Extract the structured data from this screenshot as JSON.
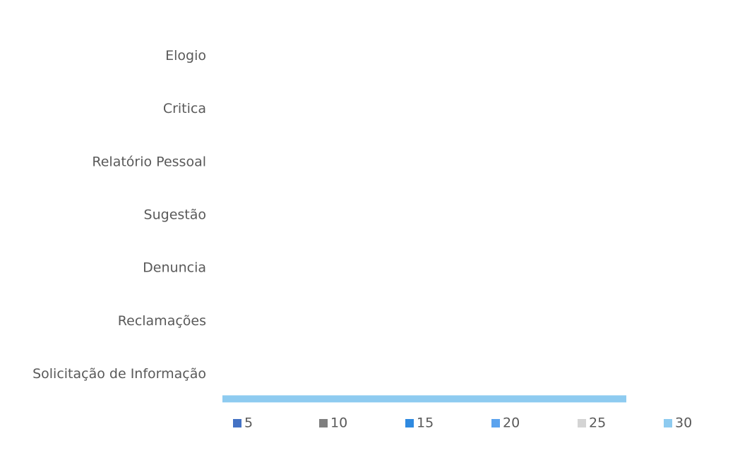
{
  "chart_data": {
    "type": "hbar",
    "categories": [
      "Elogio",
      "Critica",
      "Relatório Pessoal",
      "Sugestão",
      "Denuncia",
      "Reclamações",
      "Solicitação de Informação"
    ],
    "series": [
      {
        "name": "5",
        "color": "#4472c4",
        "values": [
          null,
          null,
          null,
          null,
          null,
          null,
          null
        ]
      },
      {
        "name": "10",
        "color": "#7f7f7f",
        "values": [
          null,
          null,
          null,
          null,
          null,
          null,
          null
        ]
      },
      {
        "name": "15",
        "color": "#2f8ae0",
        "values": [
          null,
          null,
          null,
          null,
          null,
          null,
          null
        ]
      },
      {
        "name": "20",
        "color": "#5ba3ee",
        "values": [
          null,
          null,
          null,
          null,
          null,
          null,
          null
        ]
      },
      {
        "name": "25",
        "color": "#d4d4d4",
        "values": [
          null,
          null,
          null,
          null,
          null,
          null,
          null
        ]
      },
      {
        "name": "30",
        "color": "#8ecbf0",
        "values": [
          null,
          null,
          null,
          null,
          null,
          null,
          4
        ]
      }
    ],
    "xlim": [
      0,
      5
    ]
  }
}
